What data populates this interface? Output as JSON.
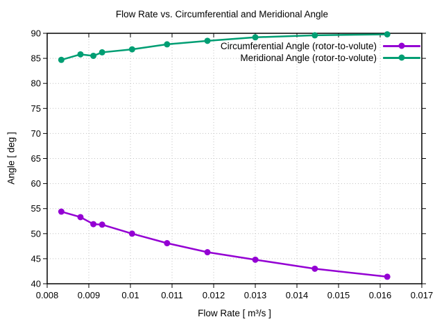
{
  "chart_data": {
    "type": "line",
    "title": "Flow Rate vs. Circumferential and Meridional Angle",
    "xlabel": "Flow Rate [ m³/s ]",
    "ylabel": "Angle [ deg ]",
    "xlim": [
      0.008,
      0.017
    ],
    "ylim": [
      40,
      90
    ],
    "grid": true,
    "legend_position": "top-right-inside",
    "xtick_values": [
      0.008,
      0.009,
      0.01,
      0.011,
      0.012,
      0.013,
      0.014,
      0.015,
      0.016,
      0.017
    ],
    "xtick_labels": [
      "0.008",
      "0.009",
      "0.01",
      "0.011",
      "0.012",
      "0.013",
      "0.014",
      "0.015",
      "0.016",
      "0.017"
    ],
    "ytick_values": [
      40,
      45,
      50,
      55,
      60,
      65,
      70,
      75,
      80,
      85,
      90
    ],
    "ytick_labels": [
      "40",
      "45",
      "50",
      "55",
      "60",
      "65",
      "70",
      "75",
      "80",
      "85",
      "90"
    ],
    "x": [
      0.00834,
      0.0088,
      0.00911,
      0.00932,
      0.01004,
      0.01088,
      0.01185,
      0.013,
      0.01443,
      0.01617
    ],
    "series": [
      {
        "name": "Circumferential Angle (rotor-to-volute)",
        "color": "#9400d3",
        "marker": "filled-circle",
        "values": [
          54.4,
          53.3,
          51.9,
          51.8,
          50.0,
          48.1,
          46.3,
          44.8,
          43.0,
          41.4
        ]
      },
      {
        "name": "Meridional Angle (rotor-to-volute)",
        "color": "#009e73",
        "marker": "filled-circle",
        "values": [
          84.7,
          85.8,
          85.5,
          86.2,
          86.8,
          87.8,
          88.5,
          89.2,
          89.6,
          89.8
        ]
      }
    ],
    "colors": {
      "background": "#ffffff",
      "border": "#000000",
      "grid": "#c0c0c0",
      "text": "#000000"
    }
  }
}
